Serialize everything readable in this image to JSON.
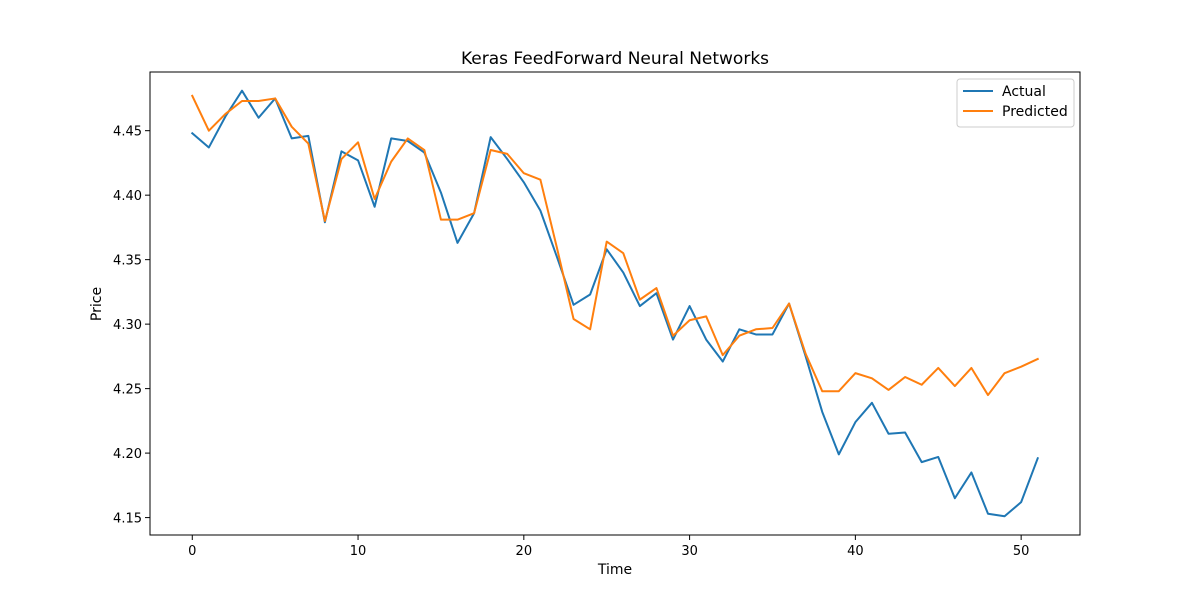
{
  "chart_data": {
    "type": "line",
    "title": "Keras FeedForward Neural Networks",
    "xlabel": "Time",
    "ylabel": "Price",
    "xlim": [
      -2.55,
      53.55
    ],
    "ylim": [
      4.1365,
      4.4955
    ],
    "x_ticks": [
      0,
      10,
      20,
      30,
      40,
      50
    ],
    "y_ticks": [
      4.15,
      4.2,
      4.25,
      4.3,
      4.35,
      4.4,
      4.45
    ],
    "grid": false,
    "legend_position": "top-right",
    "x": [
      0,
      1,
      2,
      3,
      4,
      5,
      6,
      7,
      8,
      9,
      10,
      11,
      12,
      13,
      14,
      15,
      16,
      17,
      18,
      19,
      20,
      21,
      22,
      23,
      24,
      25,
      26,
      27,
      28,
      29,
      30,
      31,
      32,
      33,
      34,
      35,
      36,
      37,
      38,
      39,
      40,
      41,
      42,
      43,
      44,
      45,
      46,
      47,
      48,
      49,
      50,
      51
    ],
    "series": [
      {
        "name": "Actual",
        "color": "#1f77b4",
        "values": [
          4.448,
          4.437,
          4.461,
          4.481,
          4.46,
          4.475,
          4.444,
          4.446,
          4.379,
          4.434,
          4.427,
          4.391,
          4.444,
          4.442,
          4.433,
          4.402,
          4.363,
          4.386,
          4.445,
          4.428,
          4.41,
          4.388,
          4.352,
          4.315,
          4.323,
          4.358,
          4.34,
          4.314,
          4.324,
          4.288,
          4.314,
          4.288,
          4.271,
          4.296,
          4.292,
          4.292,
          4.316,
          4.275,
          4.232,
          4.199,
          4.224,
          4.239,
          4.215,
          4.216,
          4.193,
          4.197,
          4.165,
          4.185,
          4.153,
          4.151,
          4.162,
          4.196
        ]
      },
      {
        "name": "Predicted",
        "color": "#ff7f0e",
        "values": [
          4.477,
          4.45,
          4.463,
          4.473,
          4.473,
          4.475,
          4.453,
          4.44,
          4.38,
          4.428,
          4.441,
          4.397,
          4.426,
          4.444,
          4.435,
          4.381,
          4.381,
          4.386,
          4.435,
          4.432,
          4.417,
          4.412,
          4.359,
          4.304,
          4.296,
          4.364,
          4.355,
          4.319,
          4.328,
          4.291,
          4.303,
          4.306,
          4.276,
          4.291,
          4.296,
          4.297,
          4.316,
          4.277,
          4.248,
          4.248,
          4.262,
          4.258,
          4.249,
          4.259,
          4.253,
          4.266,
          4.252,
          4.266,
          4.245,
          4.262,
          4.267,
          4.273
        ]
      }
    ]
  }
}
